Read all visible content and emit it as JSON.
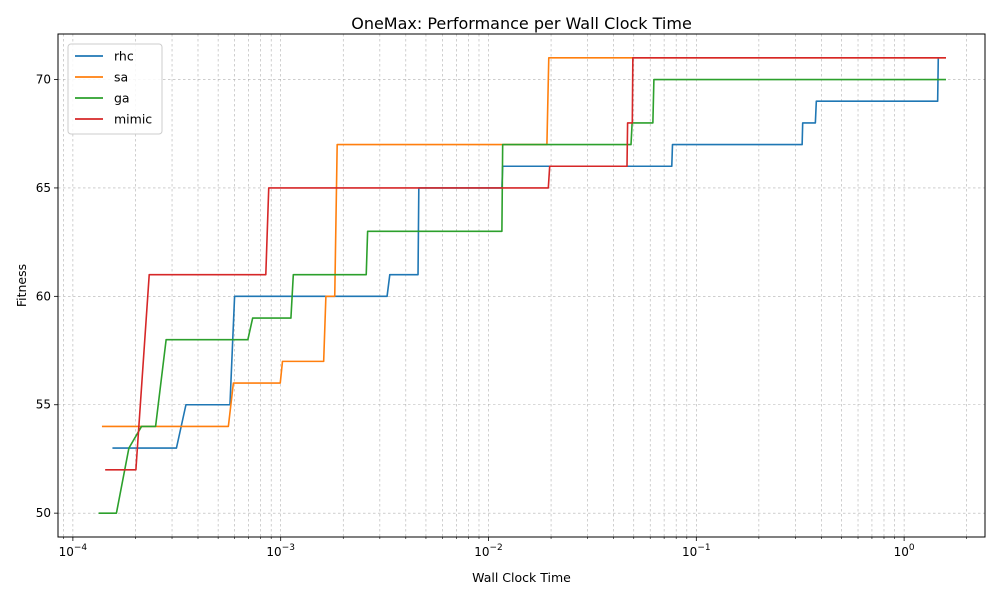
{
  "chart_data": {
    "type": "line",
    "title": "OneMax: Performance per Wall Clock Time",
    "xlabel": "Wall Clock Time",
    "ylabel": "Fitness",
    "x_scale": "log",
    "xlim": [
      8.48e-05,
      2.45
    ],
    "ylim": [
      48.9,
      72.1
    ],
    "x_ticks": [
      {
        "value": 0.0001,
        "base": "10",
        "exp": "−4"
      },
      {
        "value": 0.001,
        "base": "10",
        "exp": "−3"
      },
      {
        "value": 0.01,
        "base": "10",
        "exp": "−2"
      },
      {
        "value": 0.1,
        "base": "10",
        "exp": "−1"
      },
      {
        "value": 1,
        "base": "10",
        "exp": "0"
      }
    ],
    "y_ticks": [
      50,
      55,
      60,
      65,
      70
    ],
    "y_tick_labels": [
      "50",
      "55",
      "60",
      "65",
      "70"
    ],
    "grid": true,
    "legend_position": "top-left",
    "series": [
      {
        "name": "rhc",
        "color": "#1f77b4",
        "points": [
          [
            0.000155,
            53
          ],
          [
            0.000315,
            53
          ],
          [
            0.00035,
            55
          ],
          [
            0.00057,
            55
          ],
          [
            0.0006,
            60
          ],
          [
            0.00325,
            60
          ],
          [
            0.00335,
            61
          ],
          [
            0.00458,
            61
          ],
          [
            0.00462,
            65
          ],
          [
            0.0116,
            65
          ],
          [
            0.0117,
            66
          ],
          [
            0.0762,
            66
          ],
          [
            0.0768,
            67
          ],
          [
            0.323,
            67
          ],
          [
            0.325,
            68
          ],
          [
            0.374,
            68
          ],
          [
            0.378,
            69
          ],
          [
            1.45,
            69
          ],
          [
            1.46,
            71
          ]
        ]
      },
      {
        "name": "sa",
        "color": "#ff7f0e",
        "points": [
          [
            0.000138,
            54
          ],
          [
            0.00056,
            54
          ],
          [
            0.000592,
            56
          ],
          [
            0.000995,
            56
          ],
          [
            0.00102,
            57
          ],
          [
            0.00161,
            57
          ],
          [
            0.00165,
            60
          ],
          [
            0.00182,
            60
          ],
          [
            0.00187,
            67
          ],
          [
            0.0191,
            67
          ],
          [
            0.0195,
            71
          ],
          [
            1.59,
            71
          ]
        ]
      },
      {
        "name": "ga",
        "color": "#2ca02c",
        "points": [
          [
            0.000133,
            50
          ],
          [
            0.000162,
            50
          ],
          [
            0.000186,
            53
          ],
          [
            0.000214,
            54
          ],
          [
            0.00025,
            54
          ],
          [
            0.000281,
            58
          ],
          [
            0.000695,
            58
          ],
          [
            0.000733,
            59
          ],
          [
            0.00112,
            59
          ],
          [
            0.00115,
            61
          ],
          [
            0.00258,
            61
          ],
          [
            0.00262,
            63
          ],
          [
            0.0116,
            63
          ],
          [
            0.0117,
            67
          ],
          [
            0.0485,
            67
          ],
          [
            0.0491,
            68
          ],
          [
            0.0618,
            68
          ],
          [
            0.0625,
            70
          ],
          [
            1.59,
            70
          ]
        ]
      },
      {
        "name": "mimic",
        "color": "#d62728",
        "points": [
          [
            0.000143,
            52
          ],
          [
            0.000201,
            52
          ],
          [
            0.000233,
            61
          ],
          [
            0.000848,
            61
          ],
          [
            0.000876,
            65
          ],
          [
            0.0194,
            65
          ],
          [
            0.0197,
            66
          ],
          [
            0.0464,
            66
          ],
          [
            0.0467,
            68
          ],
          [
            0.0492,
            68
          ],
          [
            0.0495,
            71
          ],
          [
            1.59,
            71
          ]
        ]
      }
    ]
  }
}
